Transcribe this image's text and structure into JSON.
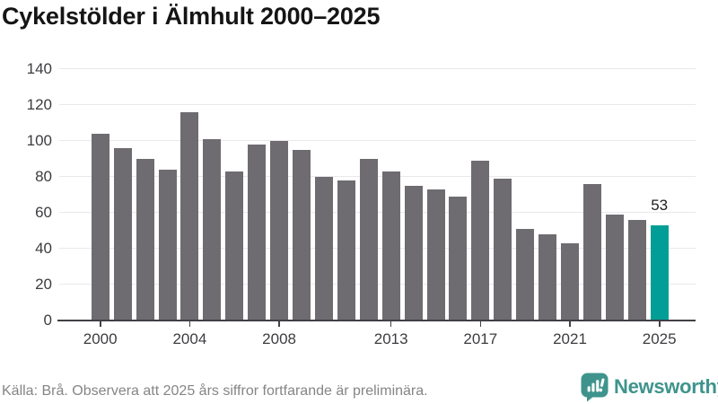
{
  "title": "Cykelstölder i Älmhult 2000–2025",
  "source_note": "Källa: Brå. Observera att 2025 års siffror fortfarande är preliminära.",
  "brand": {
    "name": "Newsworthy",
    "icon": "bar-chart-speech-bubble-icon"
  },
  "chart_data": {
    "type": "bar",
    "title": "Cykelstölder i Älmhult 2000–2025",
    "categories": [
      2000,
      2001,
      2002,
      2003,
      2004,
      2005,
      2006,
      2007,
      2008,
      2009,
      2010,
      2011,
      2012,
      2013,
      2014,
      2015,
      2016,
      2017,
      2018,
      2019,
      2020,
      2021,
      2022,
      2023,
      2024,
      2025
    ],
    "values": [
      104,
      96,
      90,
      84,
      116,
      101,
      83,
      98,
      100,
      95,
      80,
      78,
      90,
      83,
      75,
      73,
      69,
      89,
      79,
      51,
      48,
      43,
      76,
      59,
      56,
      53
    ],
    "xlabel": "",
    "ylabel": "",
    "ylim": [
      0,
      140
    ],
    "yticks": [
      0,
      20,
      40,
      60,
      80,
      100,
      120,
      140
    ],
    "xticks": [
      2000,
      2004,
      2008,
      2013,
      2017,
      2021,
      2025
    ],
    "grid": true,
    "legend": false,
    "highlight": {
      "category": 2025,
      "value": 53,
      "label": "53"
    }
  },
  "colors": {
    "background": "#FFFFFF",
    "bar": "#6E6C71",
    "accent": "#009E96",
    "gridline": "#E9E8EA",
    "axis_line": "#414045",
    "tick_label": "#3D3C40",
    "title": "#151515",
    "footnote": "#858585",
    "logo": "#3E948C"
  }
}
